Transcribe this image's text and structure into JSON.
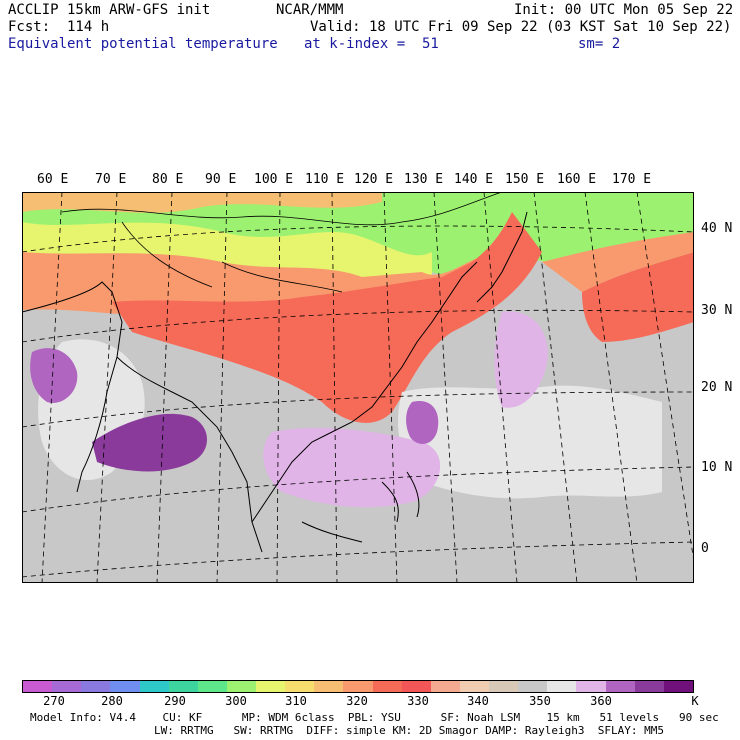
{
  "header": {
    "line1_left": "ACCLIP 15km ARW-GFS init",
    "line1_center": "NCAR/MMM",
    "line1_right": "Init: 00 UTC Mon 05 Sep 22",
    "line2_left": "Fcst:  114 h",
    "line2_right": "Valid: 18 UTC Fri 09 Sep 22 (03 KST Sat 10 Sep 22)",
    "line3_left": "Equivalent potential temperature",
    "line3_center": "at k-index =  51",
    "line3_right": "sm= 2"
  },
  "map": {
    "lon_labels": [
      "60 E",
      "70 E",
      "80 E",
      "90 E",
      "100 E",
      "110 E",
      "120 E",
      "130 E",
      "140 E",
      "150 E",
      "160 E",
      "170 E"
    ],
    "lat_labels": [
      "40 N",
      "30 N",
      "20 N",
      "10 N",
      "0"
    ]
  },
  "colorbar": {
    "colors": [
      "#c85ad2",
      "#a66ad6",
      "#8a7ae0",
      "#6f8ef0",
      "#2ec8c8",
      "#3ed4a0",
      "#5ee68a",
      "#9cf270",
      "#e6f46e",
      "#f6de6e",
      "#f6be72",
      "#f89a6e",
      "#f66a58",
      "#f25656",
      "#f4aa90",
      "#f0ccb0",
      "#d8c8b8",
      "#c8c8c8",
      "#e6e6e6",
      "#e0b4e6",
      "#b066c0",
      "#8a3a9a",
      "#70107a"
    ],
    "labels": [
      "270",
      "280",
      "290",
      "300",
      "310",
      "320",
      "330",
      "340",
      "350",
      "360",
      "K"
    ]
  },
  "footer": {
    "line1": "Model Info: V4.4    CU: KF      MP: WDM 6class  PBL: YSU      SF: Noah LSM    15 km   51 levels   90 sec",
    "line2": "LW: RRTMG   SW: RRTMG  DIFF: simple KM: 2D Smagor DAMP: Rayleigh3  SFLAY: MM5"
  }
}
